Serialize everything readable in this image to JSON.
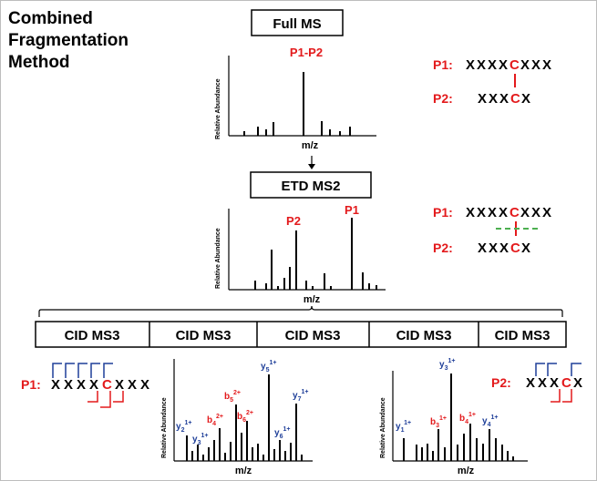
{
  "title_lines": [
    "Combined",
    "Fragmentation",
    "Method"
  ],
  "stages": {
    "full_ms": "Full MS",
    "etd_ms2": "ETD MS2",
    "cid_boxes": [
      "CID MS3",
      "CID MS3",
      "CID MS3",
      "CID MS3",
      "CID MS3"
    ]
  },
  "axes": {
    "y_label": "Relative Abundance",
    "x_label": "m/z"
  },
  "spectra": {
    "full_ms": {
      "peak_label": "P1-P2"
    },
    "etd_ms2": {
      "peak_labels": [
        "P2",
        "P1"
      ]
    }
  },
  "peptides": {
    "p1_label": "P1:",
    "p2_label": "P2:",
    "p1_seq": [
      "X",
      "X",
      "X",
      "X",
      "C",
      "X",
      "X",
      "X"
    ],
    "p2_seq": [
      "X",
      "X",
      "X",
      "C",
      "X"
    ],
    "highlight_residue": "C"
  },
  "ions": {
    "left": [
      {
        "name": "y",
        "sub": "2",
        "sup": "1+",
        "color": "blue"
      },
      {
        "name": "y",
        "sub": "3",
        "sup": "1+",
        "color": "blue"
      },
      {
        "name": "b",
        "sub": "4",
        "sup": "2+",
        "color": "red"
      },
      {
        "name": "b",
        "sub": "5",
        "sup": "2+",
        "color": "red"
      },
      {
        "name": "b",
        "sub": "6",
        "sup": "2+",
        "color": "red"
      },
      {
        "name": "y",
        "sub": "5",
        "sup": "1+",
        "color": "blue"
      },
      {
        "name": "y",
        "sub": "6",
        "sup": "1+",
        "color": "blue"
      },
      {
        "name": "y",
        "sub": "7",
        "sup": "1+",
        "color": "blue"
      }
    ],
    "right": [
      {
        "name": "y",
        "sub": "1",
        "sup": "1+",
        "color": "blue"
      },
      {
        "name": "b",
        "sub": "3",
        "sup": "1+",
        "color": "red"
      },
      {
        "name": "y",
        "sub": "3",
        "sup": "1+",
        "color": "blue"
      },
      {
        "name": "b",
        "sub": "4",
        "sup": "1+",
        "color": "red"
      },
      {
        "name": "y",
        "sub": "4",
        "sup": "1+",
        "color": "blue"
      }
    ]
  },
  "colors": {
    "red": "#e31a1c",
    "blue": "#1f3f99",
    "green": "#4caf50"
  }
}
